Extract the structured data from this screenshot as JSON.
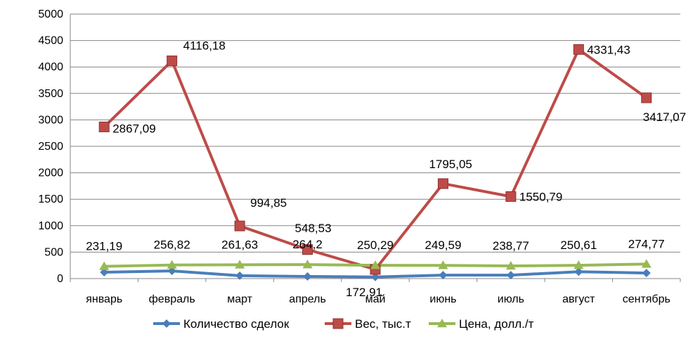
{
  "chart_data": {
    "type": "line",
    "categories": [
      "январь",
      "февраль",
      "март",
      "апрель",
      "май",
      "июнь",
      "июль",
      "август",
      "сентябрь"
    ],
    "ylim": [
      0,
      5000
    ],
    "yticks": [
      "0",
      "500",
      "1000",
      "1500",
      "2000",
      "2500",
      "3000",
      "3500",
      "4000",
      "4500",
      "5000"
    ],
    "grid": true,
    "legend_position": "bottom",
    "series": [
      {
        "name": "Количество сделок",
        "color": "#4a7ebb",
        "marker": "diamond",
        "values": [
          120,
          145,
          55,
          40,
          30,
          65,
          65,
          130,
          105
        ],
        "labels": []
      },
      {
        "name": "Вес, тыс.т",
        "color": "#be4b48",
        "marker": "square",
        "values": [
          2867.09,
          4116.18,
          994.85,
          548.53,
          172.91,
          1795.05,
          1550.79,
          4331.43,
          3417.07
        ],
        "labels": [
          "2867,09",
          "4116,18",
          "994,85",
          "548,53",
          "172,91",
          "1795,05",
          "1550,79",
          "4331,43",
          "3417,07"
        ]
      },
      {
        "name": "Цена, долл./т",
        "color": "#98b954",
        "marker": "triangle",
        "values": [
          231.19,
          256.82,
          261.63,
          264.2,
          250.29,
          249.59,
          238.77,
          250.61,
          274.77
        ],
        "labels": [
          "231,19",
          "256,82",
          "261,63",
          "264,2",
          "250,29",
          "249,59",
          "238,77",
          "250,61",
          "274,77"
        ]
      }
    ]
  }
}
